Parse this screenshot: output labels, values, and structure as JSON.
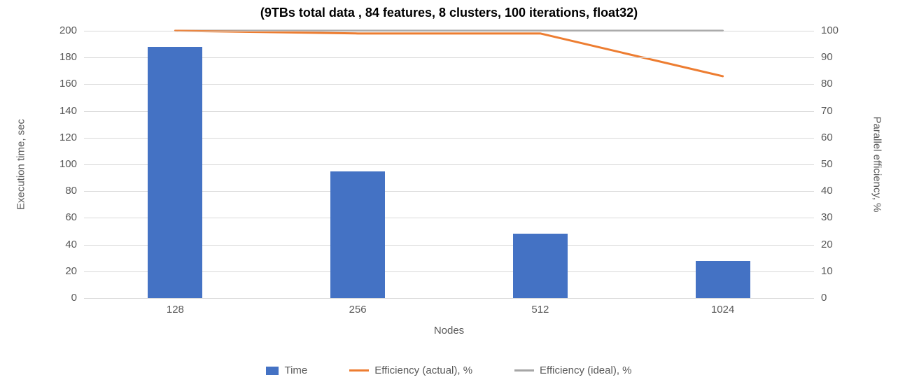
{
  "chart": {
    "type": "bar+line",
    "title": "(9TBs total data , 84 features, 8 clusters, 100 iterations, float32)",
    "title_fontsize": 18,
    "title_fontweight": "700",
    "background_color": "#ffffff",
    "grid_color": "#d9d9d9",
    "baseline_color": "#d9d9d9",
    "text_color": "#595959",
    "label_fontsize": 15,
    "x": {
      "label": "Nodes",
      "categories": [
        "128",
        "256",
        "512",
        "1024"
      ]
    },
    "y_left": {
      "label": "Execution time, sec",
      "min": 0,
      "max": 200,
      "tick_step": 20
    },
    "y_right": {
      "label": "Parallel efficiency, %",
      "min": 0,
      "max": 100,
      "tick_step": 10
    },
    "bars": {
      "name": "Time",
      "values": [
        188,
        95,
        48,
        28
      ],
      "color": "#4472c4",
      "width_fraction": 0.3
    },
    "lines": [
      {
        "name": "Efficiency (actual), %",
        "values": [
          100,
          99,
          99,
          83
        ],
        "color": "#ed7d31",
        "width": 3
      },
      {
        "name": "Efficiency (ideal), %",
        "values": [
          100,
          100,
          100,
          100
        ],
        "color": "#a6a6a6",
        "width": 3
      }
    ],
    "legend": [
      {
        "label": "Time",
        "kind": "box",
        "color": "#4472c4"
      },
      {
        "label": "Efficiency (actual), %",
        "kind": "line",
        "color": "#ed7d31"
      },
      {
        "label": "Efficiency (ideal), %",
        "kind": "line",
        "color": "#a6a6a6"
      }
    ]
  }
}
